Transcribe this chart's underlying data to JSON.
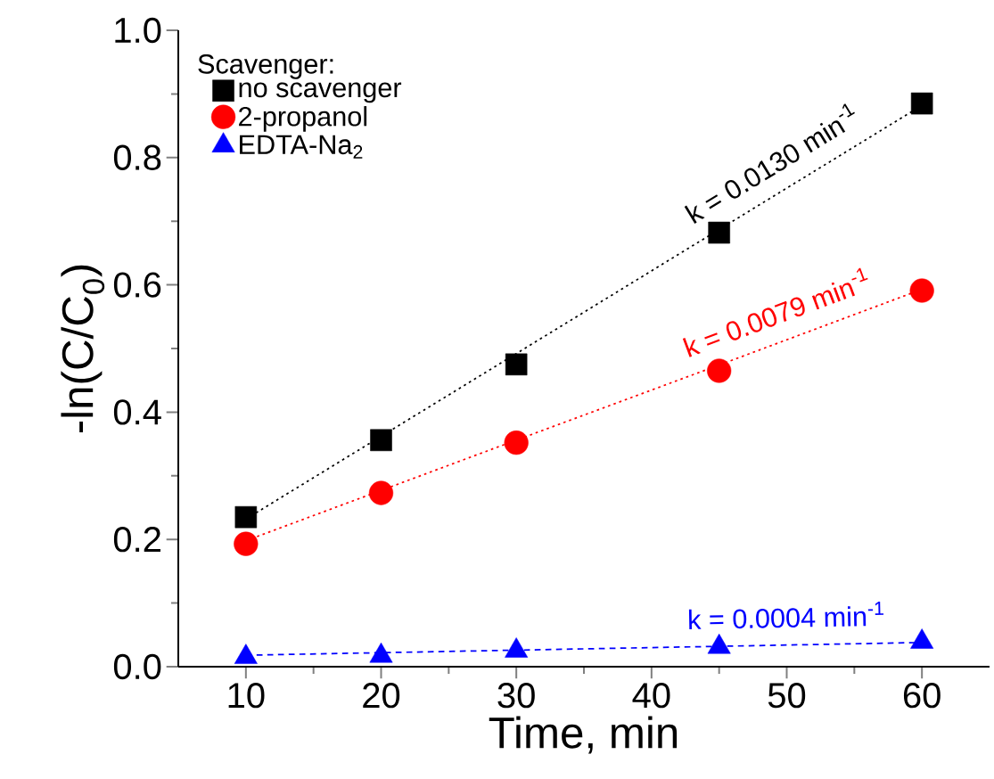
{
  "chart_data": {
    "type": "scatter",
    "xlabel": "Time, min",
    "ylabel": "-ln(C/C$_{0}$)",
    "legend_title": "Scavenger:",
    "legend": "top left",
    "x": [
      10,
      20,
      30,
      45,
      60
    ],
    "series": [
      {
        "name": "no scavenger",
        "color": "#000000",
        "marker": "square",
        "values": [
          0.235,
          0.356,
          0.475,
          0.682,
          0.885
        ]
      },
      {
        "name": "2-propanol",
        "color": "#ff0000",
        "marker": "circle",
        "values": [
          0.193,
          0.273,
          0.352,
          0.465,
          0.591
        ]
      },
      {
        "name": "EDTA-Na$_{2}$",
        "color": "#0000ff",
        "marker": "triangle",
        "values": [
          0.015,
          0.017,
          0.025,
          0.031,
          0.039
        ]
      },
      {
        "type": "line",
        "color": "#000000",
        "values": [
          0.232,
          0.362,
          0.492,
          0.687,
          0.882
        ],
        "marker": "none",
        "line_style": "dotted"
      },
      {
        "type": "line",
        "color": "#ff0000",
        "values": [
          0.198,
          0.277,
          0.356,
          0.474,
          0.593
        ],
        "marker": "none",
        "line_style": "dotted"
      },
      {
        "type": "line",
        "color": "#0000ff",
        "values": [
          0.018,
          0.022,
          0.026,
          0.032,
          0.038
        ],
        "marker": "none",
        "line_style": "dashed"
      }
    ],
    "annotations": [
      "k = 0.0130 min$^{-1}$",
      "k = 0.0079 min$^{-1}$",
      "k = 0.0004 min$^{-1}$"
    ],
    "xlim": [
      5,
      65
    ],
    "ylim": [
      0,
      1.0
    ],
    "xticks": [
      10,
      20,
      30,
      40,
      50,
      60
    ],
    "yticks": [
      {
        "value": 0,
        "label": "0.0"
      },
      {
        "value": 0.2,
        "label": "0.2"
      },
      {
        "value": 0.4,
        "label": "0.4"
      },
      {
        "value": 0.6,
        "label": "0.6"
      },
      {
        "value": 0.8,
        "label": "0.8"
      },
      {
        "value": 1.0,
        "label": "1.0"
      }
    ]
  }
}
